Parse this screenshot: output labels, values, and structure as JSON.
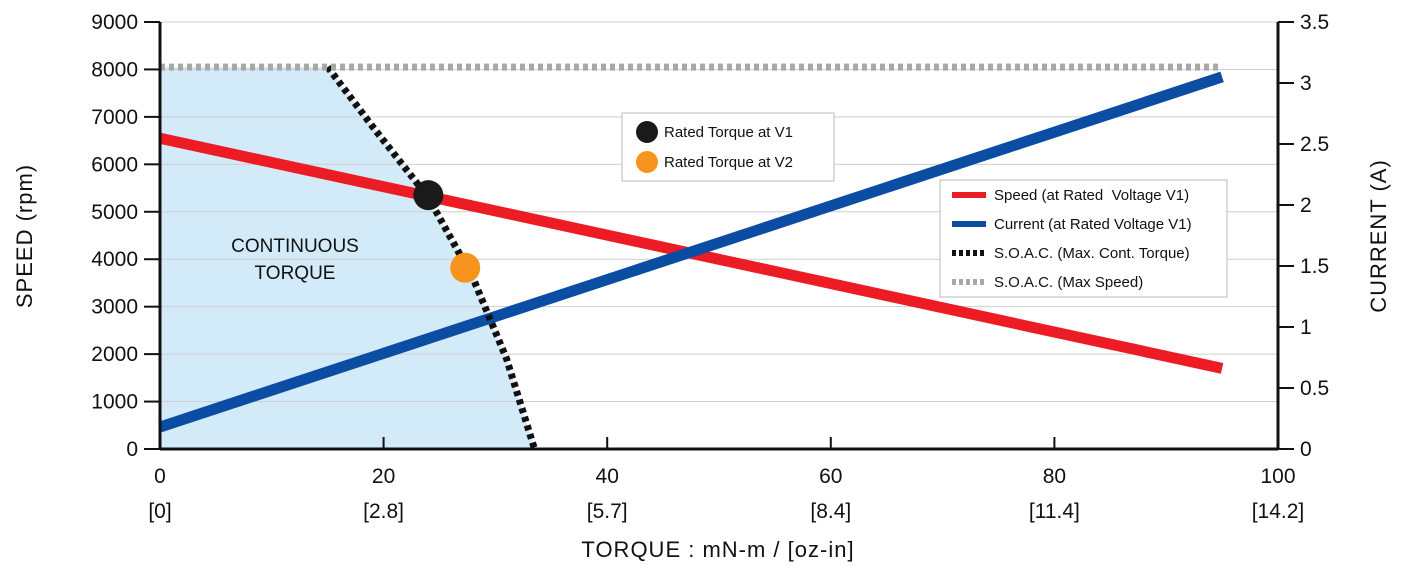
{
  "chart_data": {
    "type": "line",
    "title": "",
    "xlabel": "TORQUE : mN-m / [oz-in]",
    "ylabel": "SPEED (rpm)",
    "y2label": "CURRENT (A)",
    "xlim": [
      0,
      100
    ],
    "ylim": [
      0,
      9000
    ],
    "y2lim": [
      0,
      3.5
    ],
    "x_ticks": [
      {
        "value": 0,
        "label": "0",
        "sublabel": "[0]"
      },
      {
        "value": 20,
        "label": "20",
        "sublabel": "[2.8]"
      },
      {
        "value": 40,
        "label": "40",
        "sublabel": "[5.7]"
      },
      {
        "value": 60,
        "label": "60",
        "sublabel": "[8.4]"
      },
      {
        "value": 80,
        "label": "80",
        "sublabel": "[11.4]"
      },
      {
        "value": 100,
        "label": "100",
        "sublabel": "[14.2]"
      }
    ],
    "y_ticks": [
      {
        "value": 0,
        "label": "0"
      },
      {
        "value": 1000,
        "label": "1000"
      },
      {
        "value": 2000,
        "label": "2000"
      },
      {
        "value": 3000,
        "label": "3000"
      },
      {
        "value": 4000,
        "label": "4000"
      },
      {
        "value": 5000,
        "label": "5000"
      },
      {
        "value": 6000,
        "label": "6000"
      },
      {
        "value": 7000,
        "label": "7000"
      },
      {
        "value": 8000,
        "label": "8000"
      },
      {
        "value": 9000,
        "label": "9000"
      }
    ],
    "y2_ticks": [
      {
        "value": 0,
        "label": "0"
      },
      {
        "value": 0.5,
        "label": "0.5"
      },
      {
        "value": 1,
        "label": "1"
      },
      {
        "value": 1.5,
        "label": "1.5"
      },
      {
        "value": 2,
        "label": "2"
      },
      {
        "value": 2.5,
        "label": "2.5"
      },
      {
        "value": 3,
        "label": "3"
      },
      {
        "value": 3.5,
        "label": "3.5"
      }
    ],
    "grid": {
      "horizontal": true,
      "vertical": false
    },
    "region": {
      "label_lines": [
        "CONTINUOUS",
        "TORQUE"
      ],
      "color": "#d3eaf8",
      "boundary": [
        [
          0,
          8050
        ],
        [
          15,
          8050
        ],
        [
          19,
          6800
        ],
        [
          24,
          5300
        ],
        [
          28,
          3600
        ],
        [
          31,
          1900
        ],
        [
          33.5,
          0
        ],
        [
          0,
          0
        ]
      ]
    },
    "series": [
      {
        "name": "Speed (at Rated  Voltage V1)",
        "axis": "left",
        "style": "solid",
        "color": "#ed1c24",
        "x": [
          0,
          95
        ],
        "y": [
          6550,
          1700
        ]
      },
      {
        "name": "Current (at Rated Voltage V1)",
        "axis": "right",
        "style": "solid",
        "color": "#0b4da2",
        "x": [
          0,
          95
        ],
        "y": [
          0.18,
          3.05
        ]
      },
      {
        "name": "S.O.A.C. (Max. Cont. Torque)",
        "axis": "left",
        "style": "dotted",
        "color": "#111111",
        "x": [
          15,
          19,
          24,
          28,
          31,
          33.5
        ],
        "y": [
          8050,
          6800,
          5300,
          3600,
          1900,
          0
        ]
      },
      {
        "name": "S.O.A.C. (Max Speed)",
        "axis": "left",
        "style": "dotted",
        "color": "#a8a8a8",
        "x": [
          0,
          95
        ],
        "y": [
          8050,
          8050
        ]
      }
    ],
    "points": [
      {
        "name": "Rated Torque at V1",
        "color": "#1a1a1a",
        "x": 24,
        "y": 5350
      },
      {
        "name": "Rated Torque at V2",
        "color": "#f7941d",
        "x": 27.3,
        "y": 3820
      }
    ],
    "legend_lines_position": "right",
    "legend_points_position": "top-center"
  }
}
